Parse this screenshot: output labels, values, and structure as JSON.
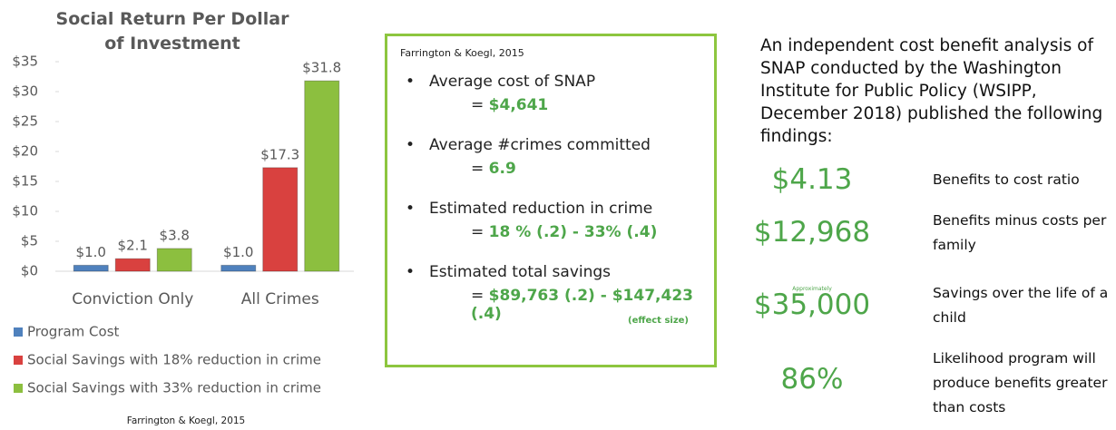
{
  "chart_data": {
    "type": "bar",
    "title": "Social Return Per Dollar of Investment",
    "categories": [
      "Conviction Only",
      "All Crimes"
    ],
    "series": [
      {
        "name": "Program Cost",
        "color": "#4f81bd",
        "values": [
          1.0,
          1.0
        ],
        "value_labels": [
          "$1.0",
          "$1.0"
        ]
      },
      {
        "name": "Social Savings with 18% reduction in crime",
        "color": "#d9413f",
        "values": [
          2.1,
          17.3
        ],
        "value_labels": [
          "$2.1",
          "$17.3"
        ]
      },
      {
        "name": "Social Savings with 33% reduction in crime",
        "color": "#8cbf3f",
        "values": [
          3.8,
          31.8
        ],
        "value_labels": [
          "$3.8",
          "$31.8"
        ]
      }
    ],
    "ylim": [
      0,
      35
    ],
    "yticks": [
      {
        "value": 0,
        "label": "$0"
      },
      {
        "value": 5,
        "label": "$5"
      },
      {
        "value": 10,
        "label": "$10"
      },
      {
        "value": 15,
        "label": "$15"
      },
      {
        "value": 20,
        "label": "$20"
      },
      {
        "value": 25,
        "label": "$25"
      },
      {
        "value": 30,
        "label": "$30"
      },
      {
        "value": 35,
        "label": "$35"
      }
    ],
    "grid": false,
    "legend": "bottom",
    "source": "Farrington & Koegl, 2015"
  },
  "box": {
    "source": "Farrington & Koegl, 2015",
    "equals": "=",
    "items": [
      {
        "label": "Average cost of SNAP",
        "value": "$4,641"
      },
      {
        "label": "Average #crimes committed",
        "value": "6.9"
      },
      {
        "label": "Estimated reduction in crime",
        "value": "18 % (.2) - 33% (.4)"
      },
      {
        "label": "Estimated total savings",
        "value": "$89,763 (.2) - $147,423 (.4)"
      }
    ],
    "footnote": "(effect size)"
  },
  "findings": {
    "intro": "An independent cost benefit analysis of SNAP conducted by the Washington Institute for Public Policy (WSIPP, December 2018) published the following findings:",
    "rows": [
      {
        "value": "$4.13",
        "label": "Benefits to cost ratio"
      },
      {
        "value": "$12,968",
        "label": "Benefits minus costs per family"
      },
      {
        "note": "Approximately",
        "value": "$35,000",
        "label": "Savings over the life of a child"
      },
      {
        "value": "86%",
        "label": "Likelihood program will produce benefits greater than costs"
      }
    ]
  }
}
